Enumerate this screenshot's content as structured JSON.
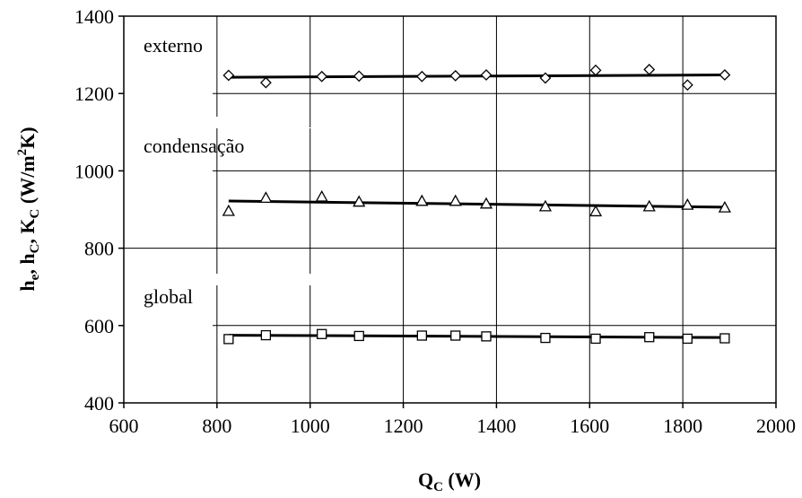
{
  "chart_data": {
    "type": "scatter",
    "xlabel": {
      "main": "Q",
      "sub": "C",
      "unit": " (W)"
    },
    "ylabel": {
      "p1": "h",
      "p1sub": "e",
      "p2": ", h",
      "p2sub": "C",
      "p3": ", K",
      "p3sub": "C",
      "p4": "  (W/m",
      "p4sup": "2",
      "p5": "K)"
    },
    "xlim": [
      600,
      2000
    ],
    "ylim": [
      400,
      1400
    ],
    "xticks": [
      600,
      800,
      1000,
      1200,
      1400,
      1600,
      1800,
      2000
    ],
    "yticks": [
      400,
      600,
      800,
      1000,
      1200,
      1400
    ],
    "grid": true,
    "series": [
      {
        "name": "externo",
        "marker": "diamond",
        "x": [
          825,
          905,
          1025,
          1105,
          1240,
          1312,
          1378,
          1505,
          1613,
          1728,
          1810,
          1890
        ],
        "y": [
          1247,
          1228,
          1244,
          1245,
          1244,
          1246,
          1248,
          1240,
          1260,
          1262,
          1222,
          1248
        ],
        "trend": [
          [
            825,
            1242
          ],
          [
            1890,
            1248
          ]
        ]
      },
      {
        "name": "condensação",
        "marker": "triangle",
        "x": [
          825,
          905,
          1025,
          1105,
          1240,
          1312,
          1378,
          1505,
          1613,
          1728,
          1810,
          1890
        ],
        "y": [
          896,
          930,
          933,
          920,
          922,
          922,
          915,
          908,
          895,
          908,
          912,
          905
        ],
        "trend": [
          [
            825,
            922
          ],
          [
            1890,
            906
          ]
        ]
      },
      {
        "name": "global",
        "marker": "square",
        "x": [
          825,
          905,
          1025,
          1105,
          1240,
          1312,
          1378,
          1505,
          1613,
          1728,
          1810,
          1890
        ],
        "y": [
          565,
          575,
          578,
          573,
          574,
          574,
          572,
          568,
          566,
          570,
          566,
          567
        ],
        "trend": [
          [
            825,
            575
          ],
          [
            1890,
            569
          ]
        ]
      }
    ]
  }
}
